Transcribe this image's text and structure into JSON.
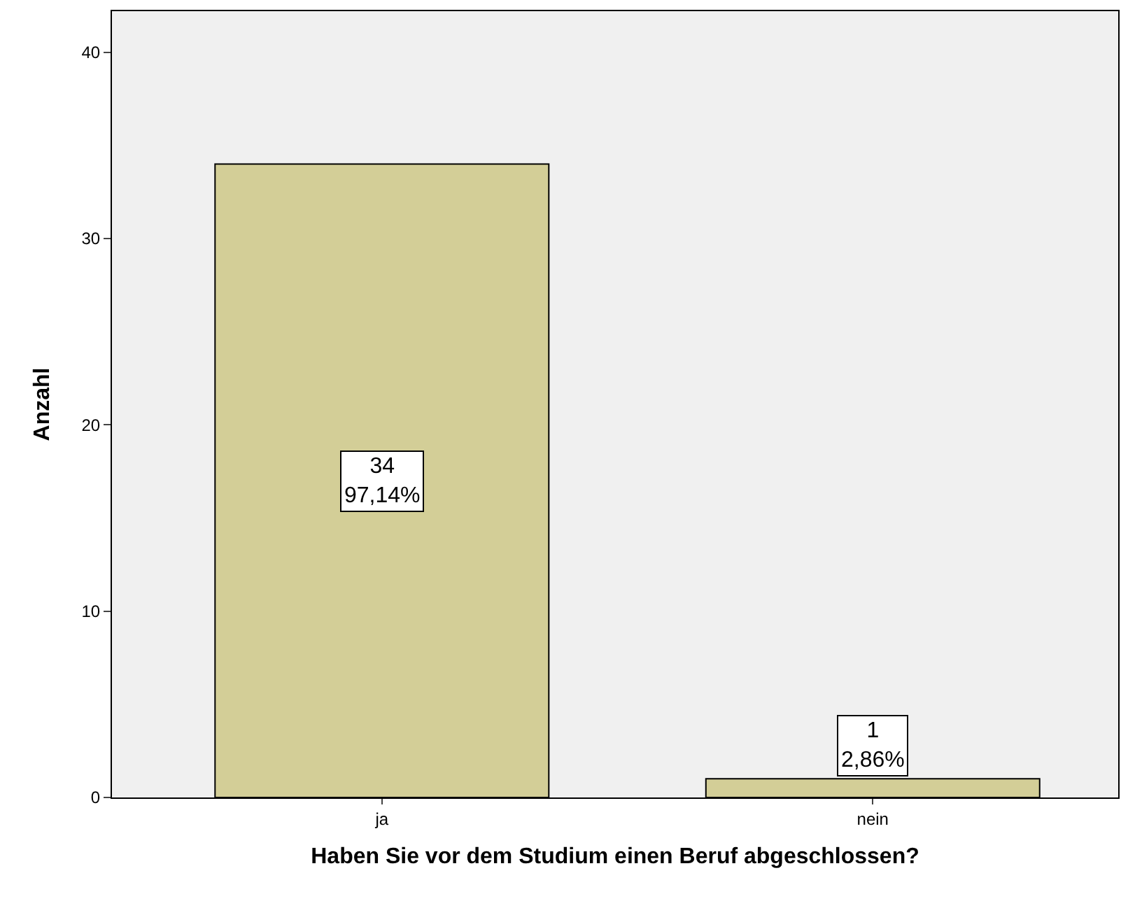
{
  "chart_data": {
    "type": "bar",
    "xlabel": "Haben Sie vor dem Studium einen Beruf abgeschlossen?",
    "ylabel": "Anzahl",
    "categories": [
      "ja",
      "nein"
    ],
    "values": [
      34,
      1
    ],
    "color": "#d3ce97",
    "value_labels": [
      "34\n97,14%",
      "1\n2,86%"
    ],
    "ylim": [
      0,
      42.2
    ],
    "yticks": [
      0,
      10,
      20,
      30,
      40
    ],
    "grid": false,
    "legend": false
  }
}
